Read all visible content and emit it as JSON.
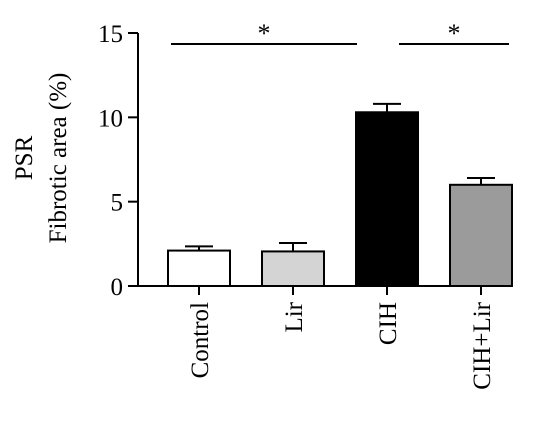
{
  "chart_data": {
    "type": "bar",
    "ylabel_lines": [
      "PSR",
      "Fibrotic area (%)"
    ],
    "categories": [
      "Control",
      "Lir",
      "CIH",
      "CIH+Lir"
    ],
    "series": [
      {
        "values": [
          2.1,
          2.05,
          10.3,
          6.0
        ],
        "error": [
          0.25,
          0.5,
          0.5,
          0.4
        ],
        "colors": [
          "#ffffff",
          "#d4d4d4",
          "#000000",
          "#9b9b9b"
        ]
      }
    ],
    "ylim": [
      0,
      15
    ],
    "yticks": [
      0,
      5,
      10,
      15
    ],
    "ytick_labels": [
      "0",
      "5",
      "10",
      "15"
    ],
    "grid": false,
    "annotations": [
      {
        "from": 0,
        "to": 2,
        "label": "*"
      },
      {
        "from": 2,
        "to": 3,
        "label": "*"
      }
    ]
  }
}
